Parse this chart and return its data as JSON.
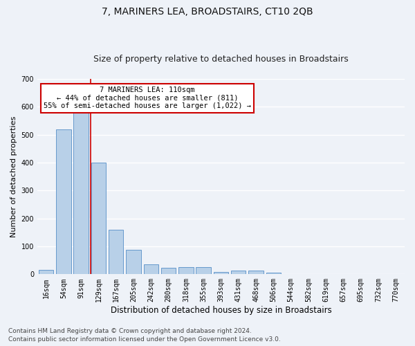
{
  "title": "7, MARINERS LEA, BROADSTAIRS, CT10 2QB",
  "subtitle": "Size of property relative to detached houses in Broadstairs",
  "xlabel": "Distribution of detached houses by size in Broadstairs",
  "ylabel": "Number of detached properties",
  "bin_labels": [
    "16sqm",
    "54sqm",
    "91sqm",
    "129sqm",
    "167sqm",
    "205sqm",
    "242sqm",
    "280sqm",
    "318sqm",
    "355sqm",
    "393sqm",
    "431sqm",
    "468sqm",
    "506sqm",
    "544sqm",
    "582sqm",
    "619sqm",
    "657sqm",
    "695sqm",
    "732sqm",
    "770sqm"
  ],
  "bar_heights": [
    15,
    520,
    585,
    400,
    160,
    88,
    35,
    22,
    25,
    25,
    8,
    14,
    14,
    5,
    0,
    0,
    0,
    0,
    0,
    0,
    0
  ],
  "bar_color": "#b8d0e8",
  "bar_edge_color": "#6699cc",
  "bar_width": 0.85,
  "ylim": [
    0,
    700
  ],
  "yticks": [
    0,
    100,
    200,
    300,
    400,
    500,
    600,
    700
  ],
  "property_line_x": 2.55,
  "property_line_color": "#cc0000",
  "annotation_text": "7 MARINERS LEA: 110sqm\n← 44% of detached houses are smaller (811)\n55% of semi-detached houses are larger (1,022) →",
  "annotation_box_color": "#ffffff",
  "annotation_box_edge": "#cc0000",
  "footnote1": "Contains HM Land Registry data © Crown copyright and database right 2024.",
  "footnote2": "Contains public sector information licensed under the Open Government Licence v3.0.",
  "background_color": "#eef2f8",
  "grid_color": "#ffffff",
  "title_fontsize": 10,
  "subtitle_fontsize": 9,
  "xlabel_fontsize": 8.5,
  "ylabel_fontsize": 8,
  "tick_fontsize": 7,
  "annotation_fontsize": 7.5,
  "footnote_fontsize": 6.5
}
